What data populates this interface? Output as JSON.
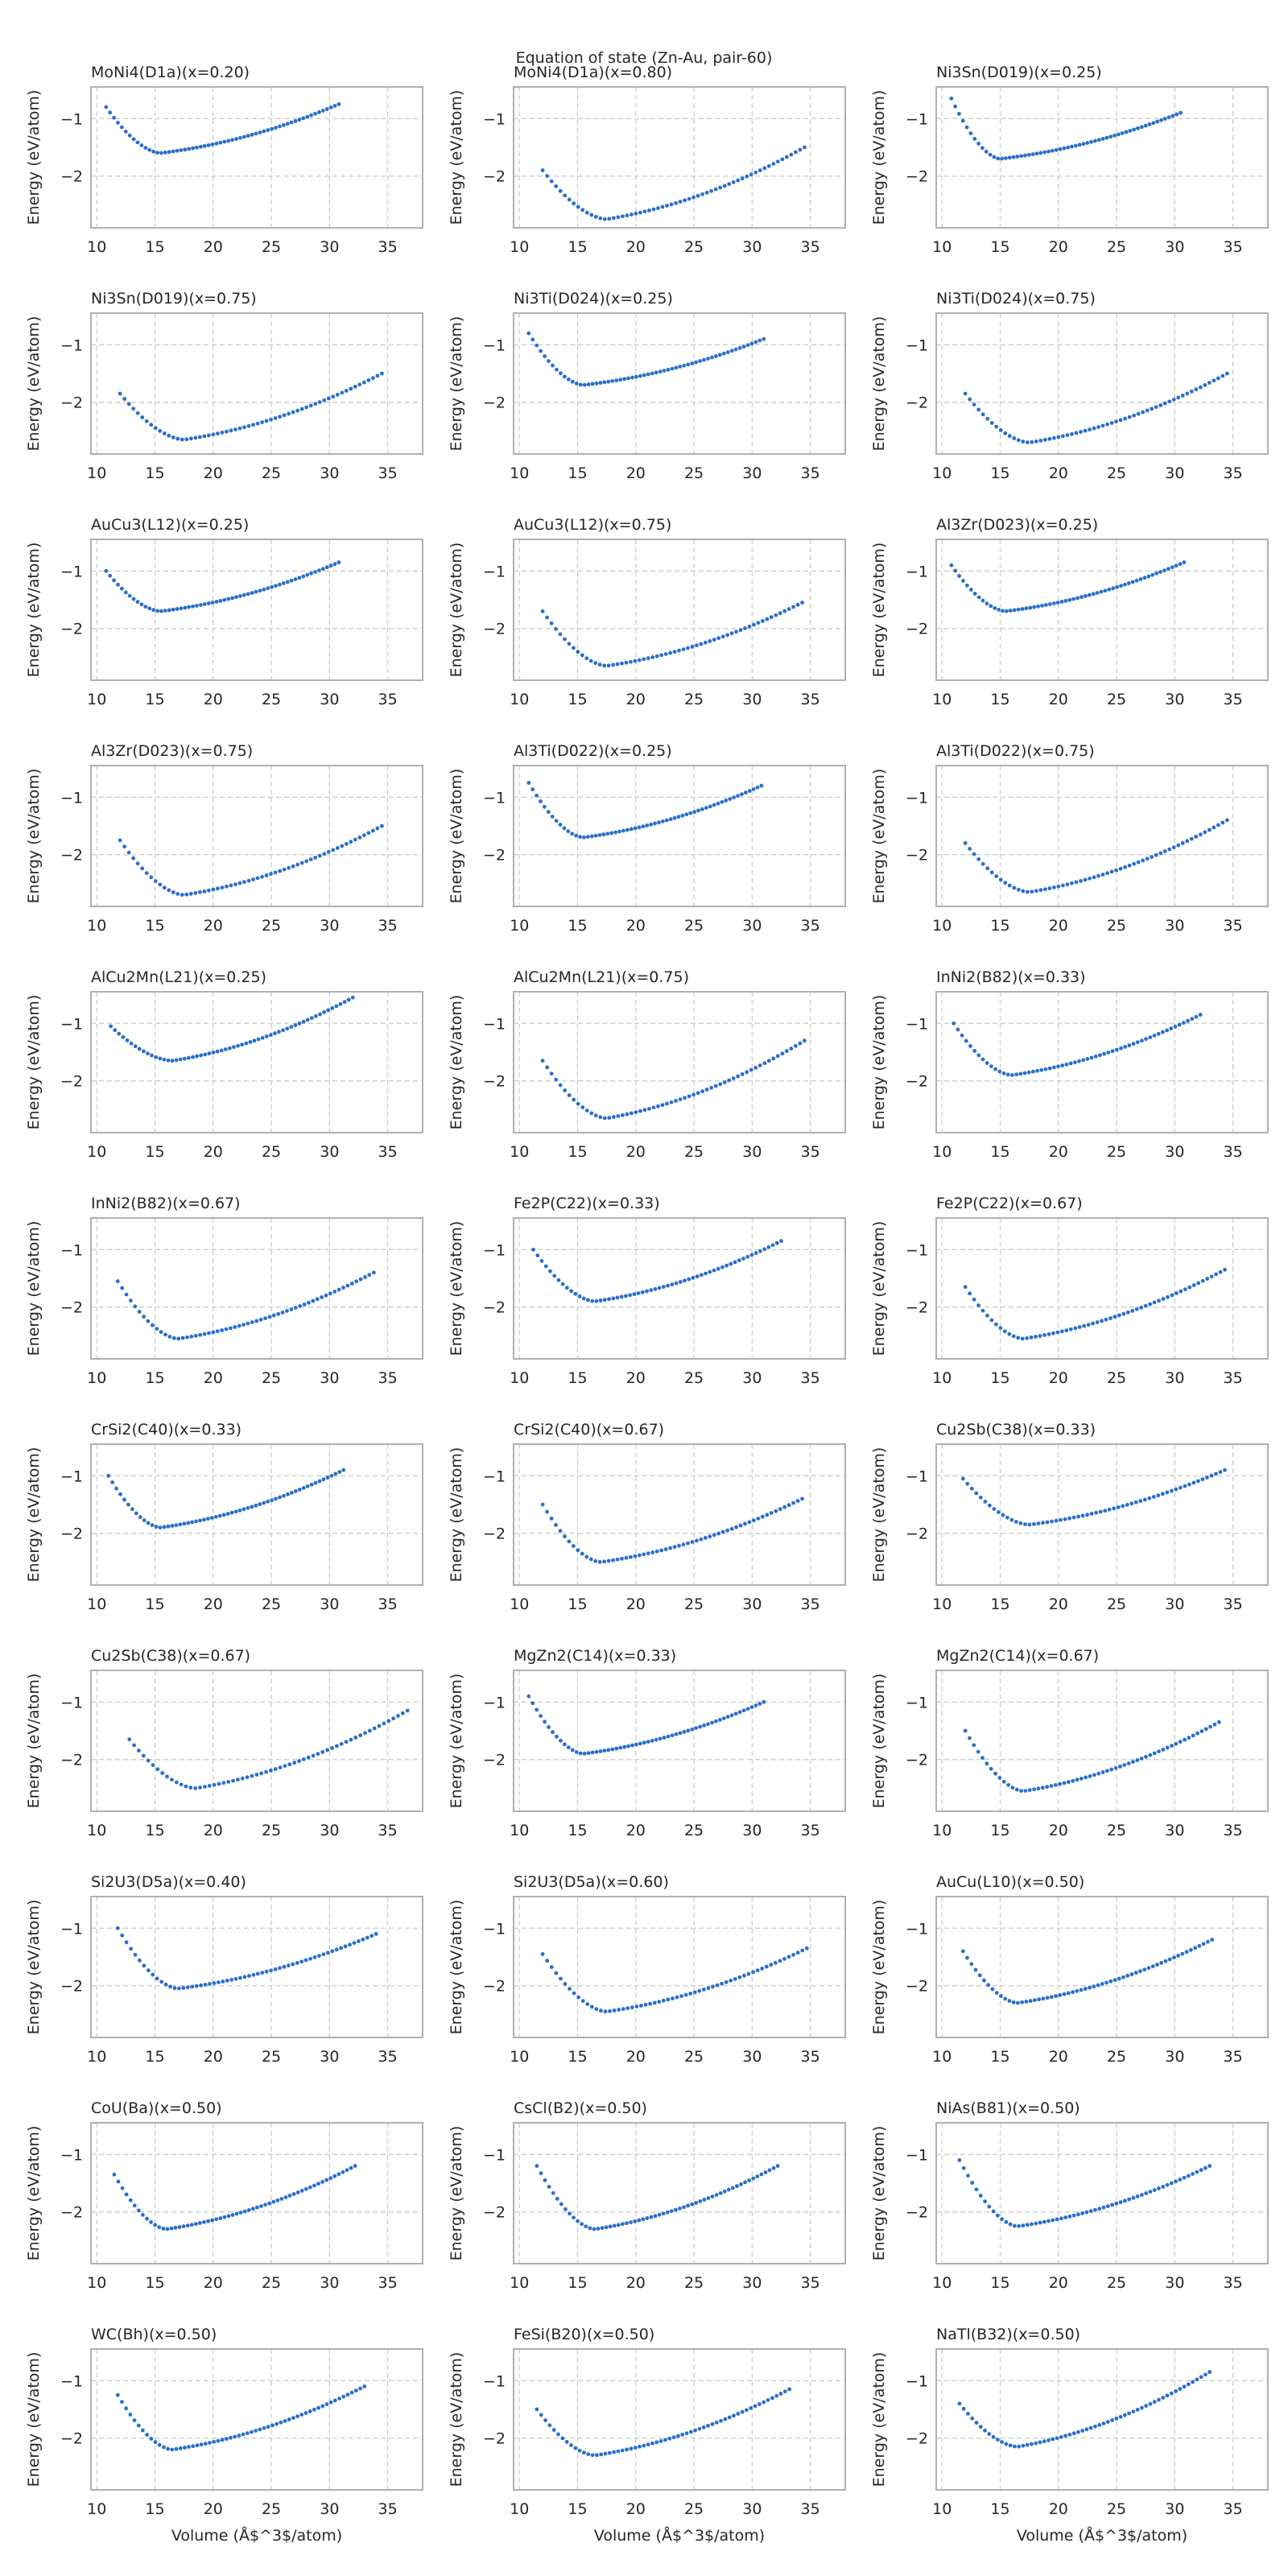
{
  "figure": {
    "suptitle": "Equation of state (Zn-Au, pair-60)",
    "xlabel": "Volume (Å$^3$/atom)",
    "ylabel": "Energy (eV/atom)",
    "point_color": "#2a6fc9",
    "grid_color": "#c8c8c8",
    "frame_color": "#b0b0b0"
  },
  "chart_data": {
    "type": "scatter",
    "xlim": [
      9.5,
      38
    ],
    "ylim": [
      -2.9,
      -0.45
    ],
    "xticks": [
      10,
      15,
      20,
      25,
      30,
      35
    ],
    "yticks": [
      -1,
      -2
    ],
    "grid": true,
    "panels": [
      {
        "title": "MoNi4(D1a)(x=0.20)",
        "x_range": [
          10.8,
          30.8
        ],
        "y_start": -0.8,
        "x_min": 15.5,
        "y_min": -1.6,
        "y_end": -0.75
      },
      {
        "title": "MoNi4(D1a)(x=0.80)",
        "x_range": [
          12.0,
          34.5
        ],
        "y_start": -1.9,
        "x_min": 17.5,
        "y_min": -2.75,
        "y_end": -1.5
      },
      {
        "title": "Ni3Sn(D019)(x=0.25)",
        "x_range": [
          10.8,
          30.5
        ],
        "y_start": -0.65,
        "x_min": 15.0,
        "y_min": -1.7,
        "y_end": -0.9
      },
      {
        "title": "Ni3Sn(D019)(x=0.75)",
        "x_range": [
          12.0,
          34.5
        ],
        "y_start": -1.85,
        "x_min": 17.5,
        "y_min": -2.65,
        "y_end": -1.5
      },
      {
        "title": "Ni3Ti(D024)(x=0.25)",
        "x_range": [
          10.8,
          31.0
        ],
        "y_start": -0.8,
        "x_min": 15.5,
        "y_min": -1.7,
        "y_end": -0.9
      },
      {
        "title": "Ni3Ti(D024)(x=0.75)",
        "x_range": [
          12.0,
          34.5
        ],
        "y_start": -1.85,
        "x_min": 17.5,
        "y_min": -2.7,
        "y_end": -1.5
      },
      {
        "title": "AuCu3(L12)(x=0.25)",
        "x_range": [
          10.8,
          30.8
        ],
        "y_start": -1.0,
        "x_min": 15.5,
        "y_min": -1.7,
        "y_end": -0.85
      },
      {
        "title": "AuCu3(L12)(x=0.75)",
        "x_range": [
          12.0,
          34.3
        ],
        "y_start": -1.7,
        "x_min": 17.5,
        "y_min": -2.65,
        "y_end": -1.55
      },
      {
        "title": "Al3Zr(D023)(x=0.25)",
        "x_range": [
          10.8,
          30.8
        ],
        "y_start": -0.9,
        "x_min": 15.5,
        "y_min": -1.7,
        "y_end": -0.85
      },
      {
        "title": "Al3Zr(D023)(x=0.75)",
        "x_range": [
          12.0,
          34.5
        ],
        "y_start": -1.75,
        "x_min": 17.5,
        "y_min": -2.7,
        "y_end": -1.5
      },
      {
        "title": "Al3Ti(D022)(x=0.25)",
        "x_range": [
          10.8,
          30.8
        ],
        "y_start": -0.75,
        "x_min": 15.5,
        "y_min": -1.7,
        "y_end": -0.8
      },
      {
        "title": "Al3Ti(D022)(x=0.75)",
        "x_range": [
          12.0,
          34.5
        ],
        "y_start": -1.8,
        "x_min": 17.5,
        "y_min": -2.65,
        "y_end": -1.4
      },
      {
        "title": "AlCu2Mn(L21)(x=0.25)",
        "x_range": [
          11.2,
          32.0
        ],
        "y_start": -1.05,
        "x_min": 16.5,
        "y_min": -1.65,
        "y_end": -0.55
      },
      {
        "title": "AlCu2Mn(L21)(x=0.75)",
        "x_range": [
          12.0,
          34.5
        ],
        "y_start": -1.65,
        "x_min": 17.5,
        "y_min": -2.65,
        "y_end": -1.3
      },
      {
        "title": "InNi2(B82)(x=0.33)",
        "x_range": [
          11.0,
          32.2
        ],
        "y_start": -1.0,
        "x_min": 16.0,
        "y_min": -1.9,
        "y_end": -0.85
      },
      {
        "title": "InNi2(B82)(x=0.67)",
        "x_range": [
          11.8,
          33.8
        ],
        "y_start": -1.55,
        "x_min": 17.0,
        "y_min": -2.55,
        "y_end": -1.4
      },
      {
        "title": "Fe2P(C22)(x=0.33)",
        "x_range": [
          11.2,
          32.5
        ],
        "y_start": -1.0,
        "x_min": 16.5,
        "y_min": -1.9,
        "y_end": -0.85
      },
      {
        "title": "Fe2P(C22)(x=0.67)",
        "x_range": [
          12.0,
          34.3
        ],
        "y_start": -1.65,
        "x_min": 17.0,
        "y_min": -2.55,
        "y_end": -1.35
      },
      {
        "title": "CrSi2(C40)(x=0.33)",
        "x_range": [
          11.0,
          31.2
        ],
        "y_start": -1.0,
        "x_min": 15.5,
        "y_min": -1.9,
        "y_end": -0.9
      },
      {
        "title": "CrSi2(C40)(x=0.67)",
        "x_range": [
          12.0,
          34.3
        ],
        "y_start": -1.5,
        "x_min": 17.0,
        "y_min": -2.5,
        "y_end": -1.4
      },
      {
        "title": "Cu2Sb(C38)(x=0.33)",
        "x_range": [
          11.8,
          34.3
        ],
        "y_start": -1.05,
        "x_min": 17.5,
        "y_min": -1.85,
        "y_end": -0.9
      },
      {
        "title": "Cu2Sb(C38)(x=0.67)",
        "x_range": [
          12.8,
          36.7
        ],
        "y_start": -1.65,
        "x_min": 18.5,
        "y_min": -2.5,
        "y_end": -1.15
      },
      {
        "title": "MgZn2(C14)(x=0.33)",
        "x_range": [
          10.8,
          31.0
        ],
        "y_start": -0.9,
        "x_min": 15.5,
        "y_min": -1.9,
        "y_end": -1.0
      },
      {
        "title": "MgZn2(C14)(x=0.67)",
        "x_range": [
          12.0,
          33.8
        ],
        "y_start": -1.5,
        "x_min": 17.0,
        "y_min": -2.55,
        "y_end": -1.35
      },
      {
        "title": "Si2U3(D5a)(x=0.40)",
        "x_range": [
          11.8,
          34.0
        ],
        "y_start": -1.0,
        "x_min": 17.0,
        "y_min": -2.05,
        "y_end": -1.1
      },
      {
        "title": "Si2U3(D5a)(x=0.60)",
        "x_range": [
          12.0,
          34.7
        ],
        "y_start": -1.45,
        "x_min": 17.5,
        "y_min": -2.45,
        "y_end": -1.35
      },
      {
        "title": "AuCu(L10)(x=0.50)",
        "x_range": [
          11.8,
          33.2
        ],
        "y_start": -1.4,
        "x_min": 16.5,
        "y_min": -2.3,
        "y_end": -1.2
      },
      {
        "title": "CoU(Ba)(x=0.50)",
        "x_range": [
          11.5,
          32.2
        ],
        "y_start": -1.35,
        "x_min": 16.0,
        "y_min": -2.3,
        "y_end": -1.2
      },
      {
        "title": "CsCl(B2)(x=0.50)",
        "x_range": [
          11.5,
          32.2
        ],
        "y_start": -1.2,
        "x_min": 16.5,
        "y_min": -2.3,
        "y_end": -1.2
      },
      {
        "title": "NiAs(B81)(x=0.50)",
        "x_range": [
          11.5,
          33.0
        ],
        "y_start": -1.1,
        "x_min": 16.5,
        "y_min": -2.25,
        "y_end": -1.2
      },
      {
        "title": "WC(Bh)(x=0.50)",
        "x_range": [
          11.8,
          33.0
        ],
        "y_start": -1.25,
        "x_min": 16.5,
        "y_min": -2.2,
        "y_end": -1.1
      },
      {
        "title": "FeSi(B20)(x=0.50)",
        "x_range": [
          11.5,
          33.2
        ],
        "y_start": -1.5,
        "x_min": 16.5,
        "y_min": -2.3,
        "y_end": -1.15
      },
      {
        "title": "NaTl(B32)(x=0.50)",
        "x_range": [
          11.5,
          33.0
        ],
        "y_start": -1.4,
        "x_min": 16.5,
        "y_min": -2.15,
        "y_end": -0.85
      }
    ]
  }
}
